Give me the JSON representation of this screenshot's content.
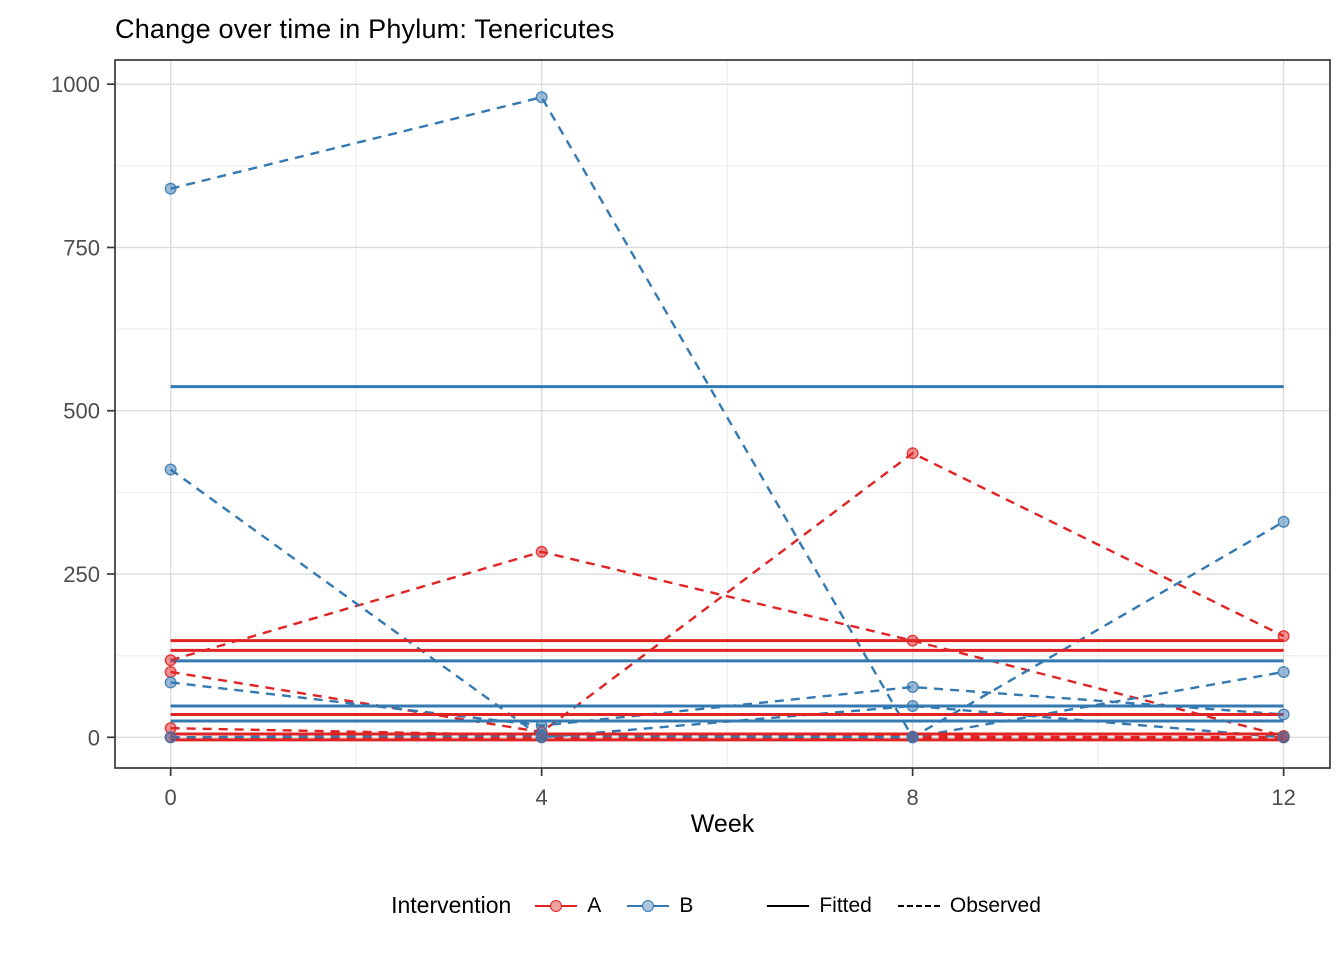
{
  "chart_data": {
    "type": "line",
    "title": "Change over time in Phylum: Tenericutes",
    "xlabel": "Week",
    "ylabel": "",
    "x": [
      0,
      4,
      8,
      12
    ],
    "x_tick_labels": [
      "0",
      "4",
      "8",
      "12"
    ],
    "x_minor_gridlines": [
      2,
      6,
      10
    ],
    "y_ticks": [
      0,
      250,
      500,
      750,
      1000
    ],
    "y_tick_labels": [
      "0",
      "250",
      "500",
      "750",
      "1000"
    ],
    "y_minor_gridlines": [
      125,
      375,
      625,
      875
    ],
    "xlim": [
      -0.6,
      12.5
    ],
    "ylim": [
      -47,
      1037
    ],
    "grid": true,
    "series": [
      {
        "group": "A",
        "kind": "observed",
        "values": [
          118,
          284,
          148,
          2
        ]
      },
      {
        "group": "A",
        "kind": "observed",
        "values": [
          100,
          8,
          435,
          155
        ]
      },
      {
        "group": "A",
        "kind": "observed",
        "values": [
          14,
          3,
          1,
          0
        ]
      },
      {
        "group": "A",
        "kind": "observed",
        "values": [
          0,
          0,
          0,
          0
        ]
      },
      {
        "group": "B",
        "kind": "observed",
        "values": [
          840,
          980,
          0,
          330
        ]
      },
      {
        "group": "B",
        "kind": "observed",
        "values": [
          410,
          0,
          48,
          0
        ]
      },
      {
        "group": "B",
        "kind": "observed",
        "values": [
          84,
          18,
          77,
          35
        ]
      },
      {
        "group": "B",
        "kind": "observed",
        "values": [
          0,
          3,
          0,
          100
        ]
      },
      {
        "group": "A",
        "kind": "fitted",
        "value": 148
      },
      {
        "group": "A",
        "kind": "fitted",
        "value": 133
      },
      {
        "group": "A",
        "kind": "fitted",
        "value": 35
      },
      {
        "group": "A",
        "kind": "fitted",
        "value": 5
      },
      {
        "group": "A",
        "kind": "fitted",
        "value": -4
      },
      {
        "group": "B",
        "kind": "fitted",
        "value": 537
      },
      {
        "group": "B",
        "kind": "fitted",
        "value": 117
      },
      {
        "group": "B",
        "kind": "fitted",
        "value": 48
      },
      {
        "group": "B",
        "kind": "fitted",
        "value": 25
      }
    ],
    "legend": {
      "position": "bottom",
      "title": "Intervention",
      "entries": [
        {
          "label": "A",
          "color": "#E02323"
        },
        {
          "label": "B",
          "color": "#3579B1"
        }
      ],
      "linetypes": [
        {
          "label": "Fitted",
          "style": "solid"
        },
        {
          "label": "Observed",
          "style": "dashed"
        }
      ]
    },
    "colors": {
      "red": "#E02323",
      "red_point_fill": "#F0A2A2",
      "blue": "#3579B1",
      "blue_point_fill": "#A9C6E1",
      "grid_major": "#DCDCDC",
      "grid_minor": "#EDEDED",
      "panel_border": "#383838",
      "tick_label": "#4D4D4D",
      "line_black": "#000000"
    }
  }
}
